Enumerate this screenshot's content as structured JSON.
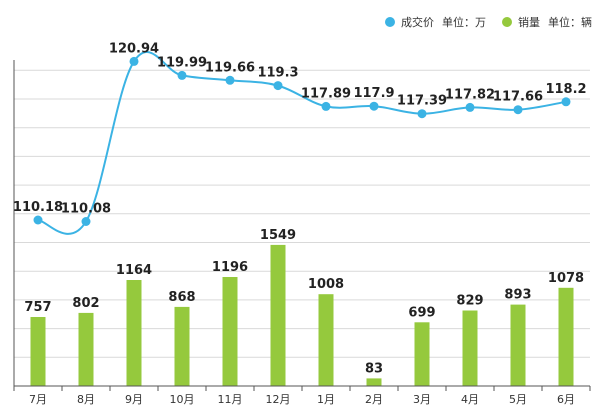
{
  "legend": {
    "price": {
      "name": "成交价",
      "unit": "单位：万",
      "color": "#3bb3e4"
    },
    "sales": {
      "name": "销量",
      "unit": "单位：辆",
      "color": "#95c93d"
    }
  },
  "chart_data": {
    "type": "bar+line",
    "categories": [
      "7月",
      "8月",
      "9月",
      "10月",
      "11月",
      "12月",
      "1月",
      "2月",
      "3月",
      "4月",
      "5月",
      "6月"
    ],
    "series": [
      {
        "name": "成交价",
        "type": "line",
        "unit": "单位：万",
        "values": [
          110.18,
          110.08,
          120.94,
          119.99,
          119.66,
          119.3,
          117.89,
          117.9,
          117.39,
          117.82,
          117.66,
          118.2
        ],
        "labels": [
          "110.18",
          "110.08",
          "120.94",
          "119.99",
          "119.66",
          "119.3",
          "117.89",
          "117.9",
          "117.39",
          "117.82",
          "117.66",
          "118.2"
        ]
      },
      {
        "name": "销量",
        "type": "bar",
        "unit": "单位：辆",
        "values": [
          757,
          802,
          1164,
          868,
          1196,
          1549,
          1008,
          83,
          699,
          829,
          893,
          1078
        ],
        "labels": [
          "757",
          "802",
          "1164",
          "868",
          "1196",
          "1549",
          "1008",
          "83",
          "699",
          "829",
          "893",
          "1078"
        ]
      }
    ],
    "grid": true,
    "legend_position": "top-right"
  }
}
